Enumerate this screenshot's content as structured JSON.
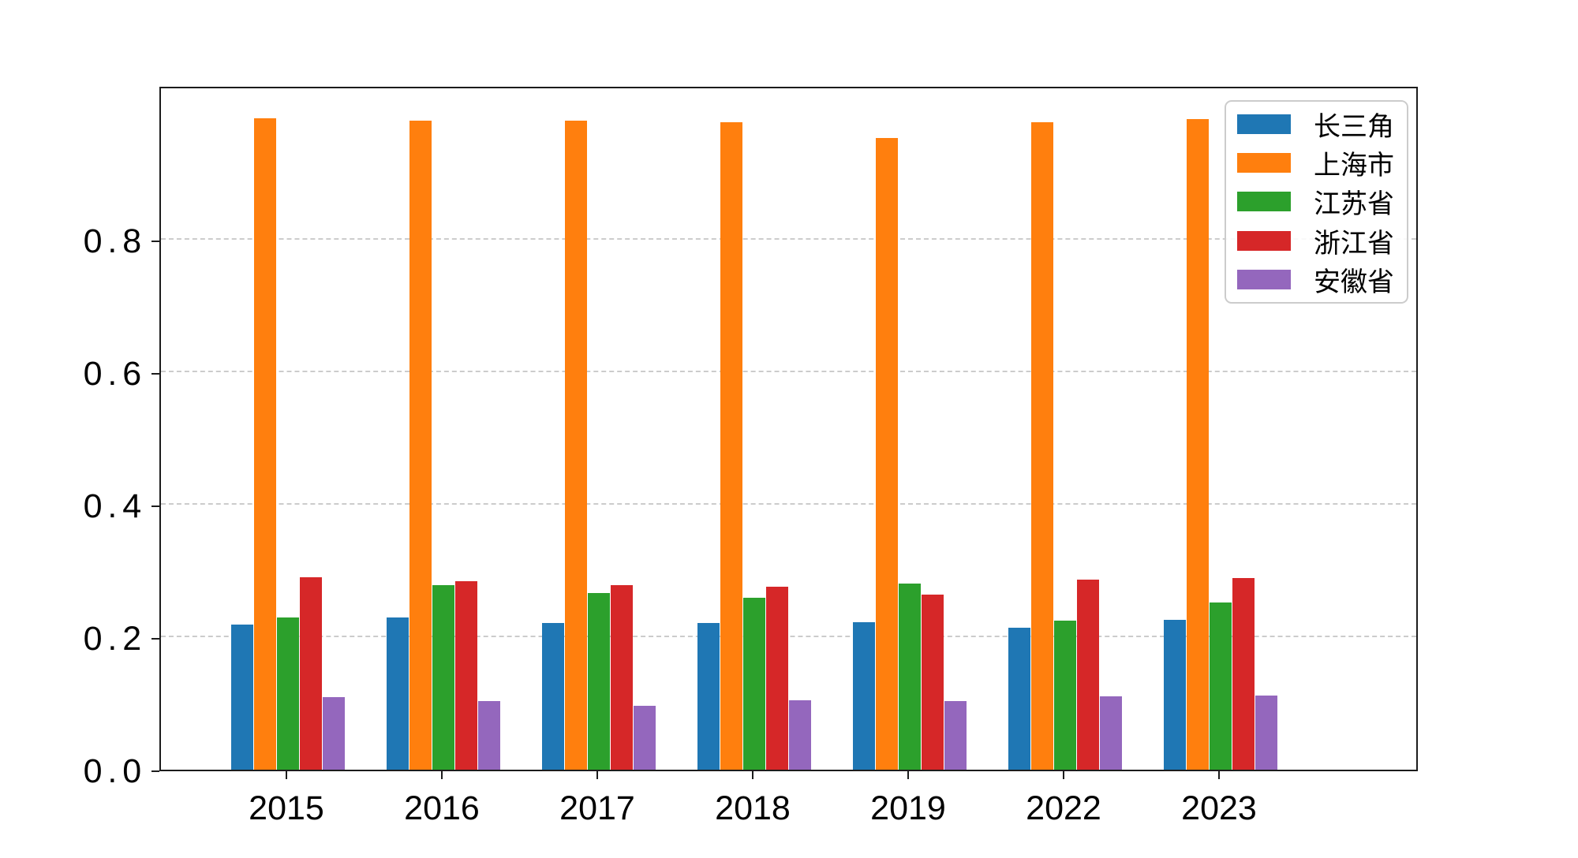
{
  "chart_data": {
    "type": "bar",
    "title": "",
    "xlabel": "",
    "ylabel": "",
    "categories": [
      "2015",
      "2016",
      "2017",
      "2018",
      "2019",
      "2022",
      "2023"
    ],
    "series": [
      {
        "name": "长三角",
        "color": "#1f77b4",
        "values": [
          0.219,
          0.23,
          0.222,
          0.222,
          0.223,
          0.214,
          0.226
        ]
      },
      {
        "name": "上海市",
        "color": "#ff7f0e",
        "values": [
          0.983,
          0.98,
          0.98,
          0.977,
          0.954,
          0.977,
          0.982
        ]
      },
      {
        "name": "江苏省",
        "color": "#2ca02c",
        "values": [
          0.23,
          0.279,
          0.267,
          0.26,
          0.281,
          0.225,
          0.252
        ]
      },
      {
        "name": "浙江省",
        "color": "#d62728",
        "values": [
          0.291,
          0.284,
          0.279,
          0.276,
          0.264,
          0.287,
          0.289
        ]
      },
      {
        "name": "安徽省",
        "color": "#9467bd",
        "values": [
          0.109,
          0.103,
          0.097,
          0.105,
          0.103,
          0.111,
          0.112
        ]
      }
    ],
    "ytick_labels": [
      "0.0",
      "0.2",
      "0.4",
      "0.6",
      "0.8"
    ],
    "ytick_values": [
      0.0,
      0.2,
      0.4,
      0.6,
      0.8
    ],
    "ylim": [
      0,
      1.033
    ],
    "grid": "horizontal dashed at 0.2 intervals",
    "gridline_color": "#cccccc",
    "axis_color": "#1c1c1c",
    "legend": {
      "position": "upper-right",
      "entries": [
        "长三角",
        "上海市",
        "江苏省",
        "浙江省",
        "安徽省"
      ]
    }
  }
}
